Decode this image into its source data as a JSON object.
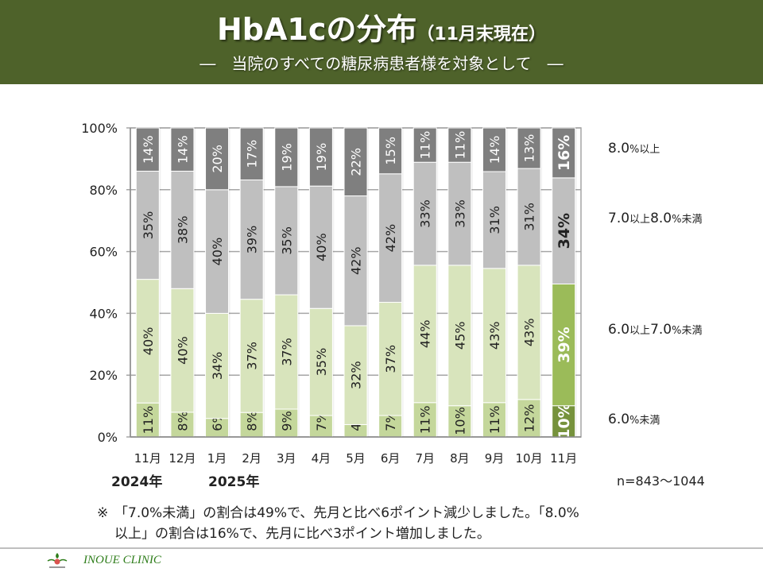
{
  "header": {
    "title": "HbA1cの分布",
    "title_sub": "（11月末現在）",
    "subtitle": "―　当院のすべての糖尿病患者様を対象として　―"
  },
  "legend": [
    {
      "main": "8.0",
      "small": "%以上",
      "tail": "",
      "tail_small": ""
    },
    {
      "main": "7.0",
      "small": "以上",
      "tail": "8.0",
      "tail_small": "%未満"
    },
    {
      "main": "6.0",
      "small": "以上",
      "tail": "7.0",
      "tail_small": "%未満"
    },
    {
      "main": "6.0",
      "small": "%未満",
      "tail": "",
      "tail_small": ""
    }
  ],
  "sample_size": "n=843～1044",
  "years": {
    "first": "2024年",
    "second": "2025年"
  },
  "note": {
    "mark": "※",
    "line1": "「7.0%未満」の割合は49%で、先月と比べ6ポイント減少しました。「8.0%",
    "line2": "以上」の割合は16%で、先月に比べ3ポイント増加しました。"
  },
  "footer": {
    "clinic_name": "INOUE CLINIC"
  },
  "colors": {
    "header_bg": "#4e622a",
    "seg_lt6": "#c4d79b",
    "seg_6to7": "#d8e4bc",
    "seg_7to8": "#bfbfbf",
    "seg_ge8": "#7f7f7f",
    "hl_lt6": "#76923c",
    "hl_6to7": "#9bbb59"
  },
  "chart_data": {
    "type": "bar",
    "stacked": true,
    "percent_stacked": true,
    "title": "HbA1cの分布（11月末現在）",
    "xlabel": "",
    "ylabel": "",
    "ylim": [
      0,
      100
    ],
    "yticks": [
      "0%",
      "20%",
      "40%",
      "60%",
      "80%",
      "100%"
    ],
    "grid": true,
    "legend_position": "right",
    "categories": [
      "11月",
      "12月",
      "1月",
      "2月",
      "3月",
      "4月",
      "5月",
      "6月",
      "7月",
      "8月",
      "9月",
      "10月",
      "11月"
    ],
    "highlight_index": 12,
    "series": [
      {
        "name": "6.0%未満",
        "values": [
          11,
          8,
          6,
          8,
          9,
          7,
          4,
          7,
          11,
          10,
          11,
          12,
          10
        ]
      },
      {
        "name": "6.0以上7.0%未満",
        "values": [
          40,
          40,
          34,
          37,
          37,
          35,
          32,
          37,
          44,
          45,
          43,
          43,
          39
        ]
      },
      {
        "name": "7.0以上8.0%未満",
        "values": [
          35,
          38,
          40,
          39,
          35,
          40,
          42,
          42,
          33,
          33,
          31,
          31,
          34
        ]
      },
      {
        "name": "8.0%以上",
        "values": [
          14,
          14,
          20,
          17,
          19,
          19,
          22,
          15,
          11,
          11,
          14,
          13,
          16
        ]
      }
    ]
  }
}
